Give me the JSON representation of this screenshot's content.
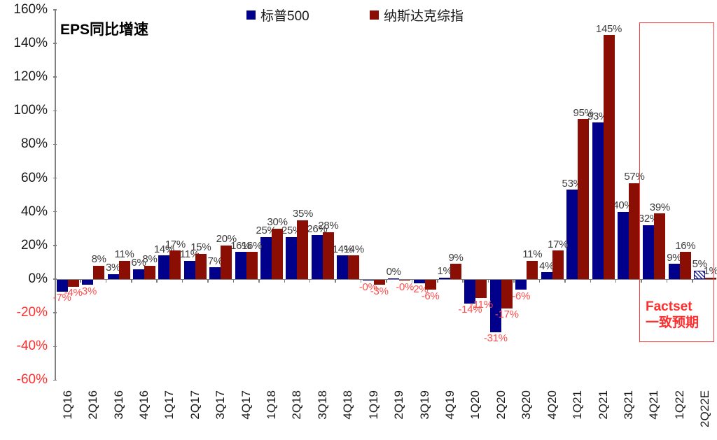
{
  "title": "EPS同比增速",
  "legend": [
    {
      "label": "标普500",
      "color": "#00008B"
    },
    {
      "label": "纳斯达克综指",
      "color": "#8B0E04"
    }
  ],
  "annotation": {
    "line1": "Factset",
    "line2": "一致预期",
    "color": "#ff2d2d"
  },
  "chart_data": {
    "type": "bar",
    "title": "EPS同比增速",
    "unit": "percent YoY",
    "ylim": [
      -60,
      160
    ],
    "grid": false,
    "legend_position": "top",
    "yticks": [
      {
        "value": 160,
        "label": "160%"
      },
      {
        "value": 140,
        "label": "140%"
      },
      {
        "value": 120,
        "label": "120%"
      },
      {
        "value": 100,
        "label": "100%"
      },
      {
        "value": 80,
        "label": "80%"
      },
      {
        "value": 60,
        "label": "60%"
      },
      {
        "value": 40,
        "label": "40%"
      },
      {
        "value": 20,
        "label": "20%"
      },
      {
        "value": 0,
        "label": "0%"
      },
      {
        "value": -20,
        "label": "-20%"
      },
      {
        "value": -40,
        "label": "-40%"
      },
      {
        "value": -60,
        "label": "-60%"
      }
    ],
    "categories": [
      "1Q16",
      "2Q16",
      "3Q16",
      "4Q16",
      "1Q17",
      "2Q17",
      "3Q17",
      "4Q17",
      "1Q18",
      "2Q18",
      "3Q18",
      "4Q18",
      "1Q19",
      "2Q19",
      "3Q19",
      "4Q19",
      "1Q20",
      "2Q20",
      "3Q20",
      "4Q20",
      "1Q21",
      "2Q21",
      "3Q21",
      "4Q21",
      "1Q22",
      "2Q22E"
    ],
    "series": [
      {
        "name": "标普500",
        "color": "#00008B",
        "values": [
          -7,
          -3,
          3,
          6,
          14,
          11,
          7,
          16,
          25,
          25,
          26,
          14,
          -0.5,
          0.5,
          -2,
          1,
          -14,
          -31,
          -6,
          4,
          53,
          93,
          40,
          32,
          9,
          5
        ],
        "labels": [
          "-7%",
          "-3%",
          "3%",
          "6%",
          "14%",
          "11%",
          "7%",
          "16%",
          "25%",
          "25%",
          "26%",
          "14%",
          "-0%",
          "0%",
          "-2%",
          "1%",
          "-14%",
          "-31%",
          "-6%",
          "4%",
          "53%",
          "93%",
          "40%",
          "32%",
          "9%",
          "5%"
        ]
      },
      {
        "name": "纳斯达克综指",
        "color": "#8B0E04",
        "values": [
          -4,
          8,
          11,
          8,
          17,
          15,
          20,
          16,
          30,
          35,
          28,
          14,
          -3,
          -0.5,
          -6,
          9,
          -11,
          -17,
          11,
          17,
          95,
          145,
          57,
          39,
          16,
          1
        ],
        "labels": [
          "-4%",
          "8%",
          "11%",
          "8%",
          "17%",
          "15%",
          "20%",
          "16%",
          "30%",
          "35%",
          "28%",
          "14%",
          "-3%",
          "-0%",
          "-6%",
          "9%",
          "-11%",
          "-17%",
          "11%",
          "17%",
          "95%",
          "145%",
          "57%",
          "39%",
          "16%",
          "1%"
        ]
      }
    ],
    "hatched_bar": {
      "series_index": 0,
      "category": "2Q22E"
    },
    "forecast_region_categories": [
      "4Q21",
      "1Q22",
      "2Q22E"
    ],
    "label_color_positive": "#3d3d3d",
    "label_color_negative": "#ff4d4d",
    "ytick_color_negative": "#ff2d2d",
    "ytick_color_positive": "#1a1a1a"
  }
}
